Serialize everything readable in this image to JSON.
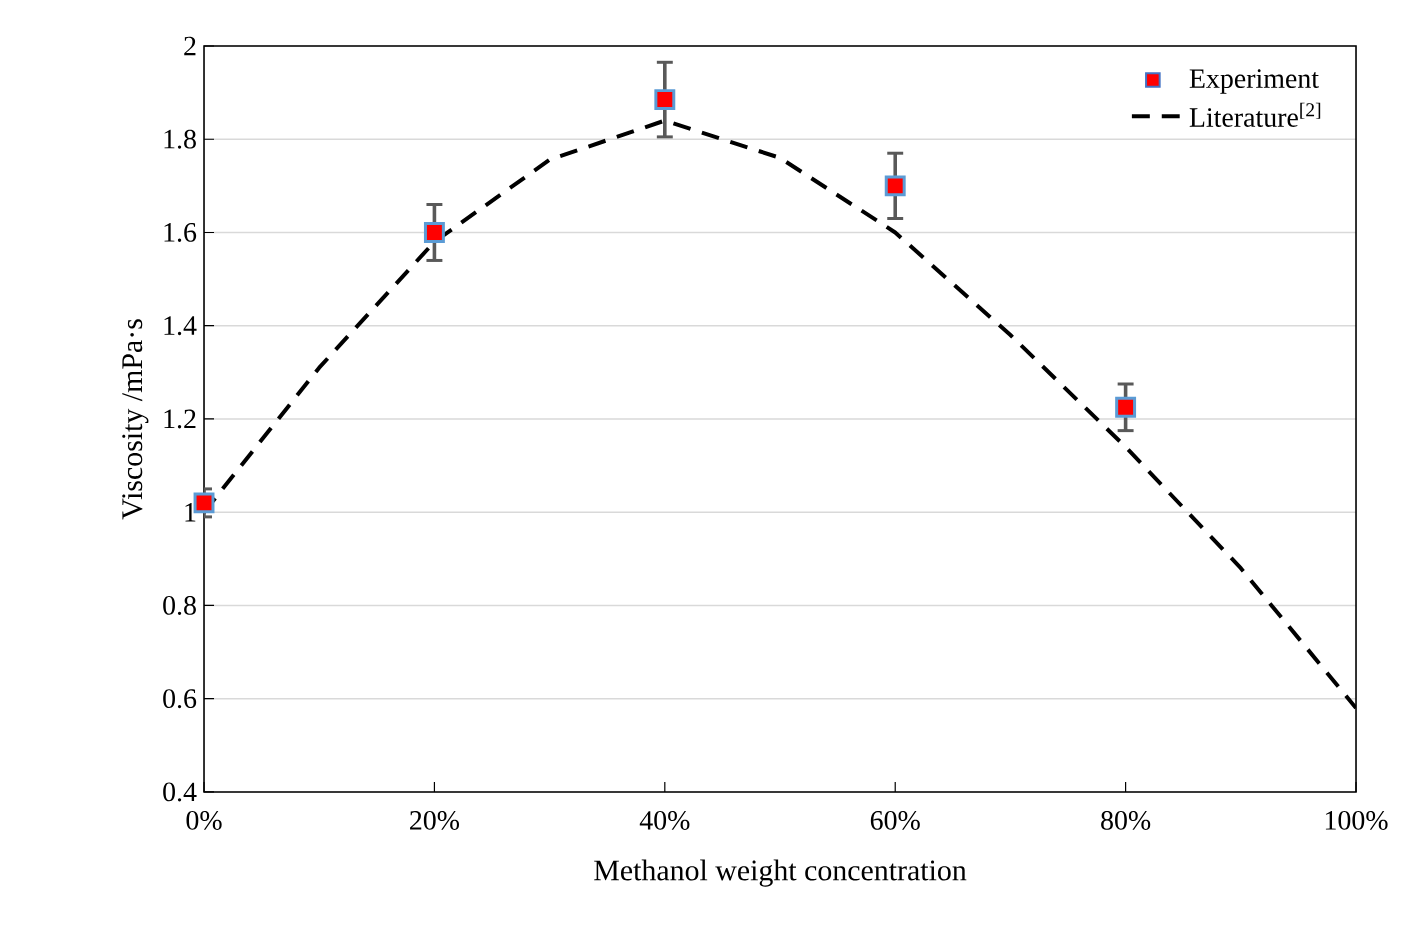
{
  "chart_data": {
    "type": "scatter",
    "xlabel": "Methanol weight concentration",
    "ylabel": "Viscosity  /mPa·s",
    "xlim": [
      0,
      100
    ],
    "xticks": [
      {
        "value": 0,
        "label": "0%"
      },
      {
        "value": 20,
        "label": "20%"
      },
      {
        "value": 40,
        "label": "40%"
      },
      {
        "value": 60,
        "label": "60%"
      },
      {
        "value": 80,
        "label": "80%"
      },
      {
        "value": 100,
        "label": "100%"
      }
    ],
    "ylim": [
      0.4,
      2
    ],
    "yticks": [
      0.4,
      0.6,
      0.8,
      1,
      1.2,
      1.4,
      1.6,
      1.8,
      2
    ],
    "grid": "y",
    "legend": "top right",
    "series": [
      {
        "name": "Experiment",
        "marker": "square",
        "color": "#ff0000",
        "x": [
          0,
          20,
          40,
          60,
          80
        ],
        "values": [
          1.02,
          1.6,
          1.885,
          1.7,
          1.225
        ],
        "errors": [
          0.03,
          0.06,
          0.08,
          0.07,
          0.05
        ]
      },
      {
        "name": "Literature$^{[2]}$",
        "type": "line",
        "line_style": "dashed",
        "marker": "none",
        "color": "#000000",
        "x": [
          0,
          10,
          20,
          30,
          40,
          50,
          60,
          70,
          80,
          90,
          100
        ],
        "values": [
          1.0,
          1.31,
          1.58,
          1.756,
          1.84,
          1.76,
          1.6,
          1.38,
          1.14,
          0.88,
          0.58
        ]
      }
    ]
  }
}
